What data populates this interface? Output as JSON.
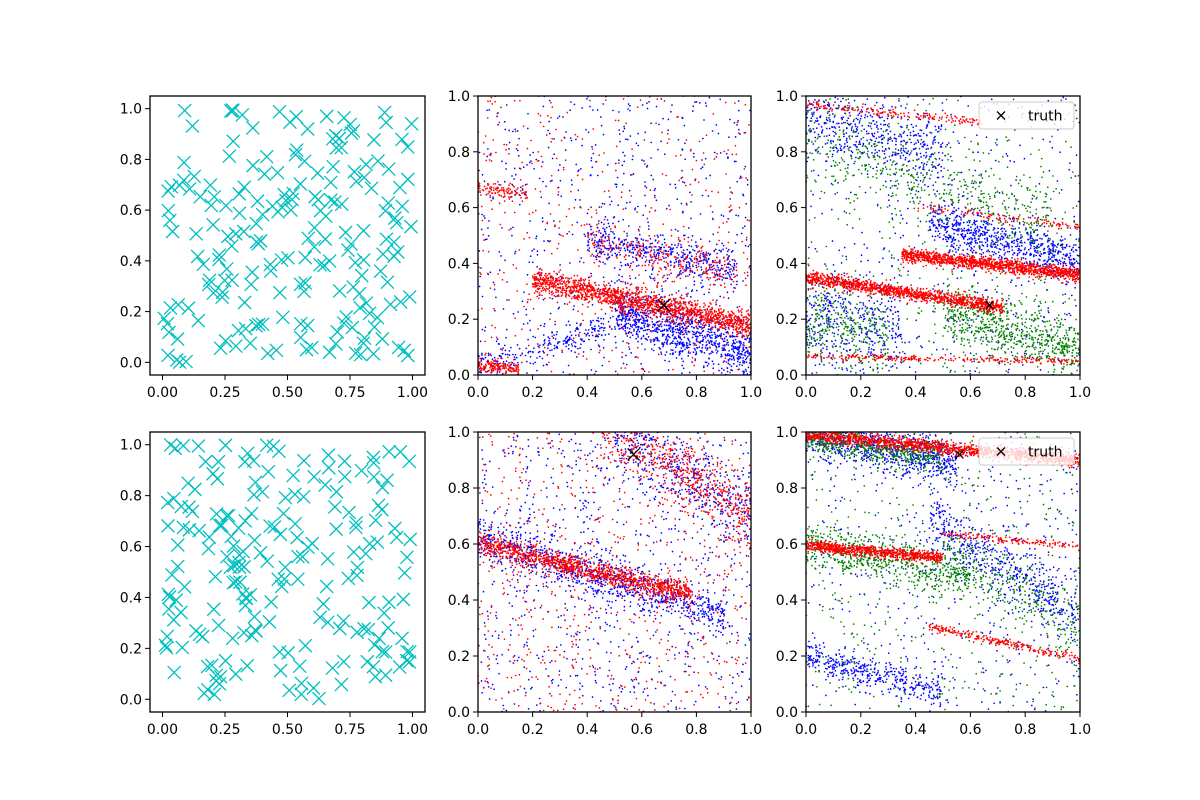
{
  "chart_data": [
    {
      "type": "scatter",
      "panel": "top-left",
      "xlim": [
        -0.05,
        1.05
      ],
      "ylim": [
        -0.05,
        1.05
      ],
      "xticks": [
        "0.00",
        "0.25",
        "0.50",
        "0.75",
        "1.00"
      ],
      "yticks": [
        "0.0",
        "0.2",
        "0.4",
        "0.6",
        "0.8",
        "1.0"
      ],
      "series": [
        {
          "marker": "x",
          "color": "#00bfbf",
          "count": 200,
          "distribution": "uniform [0,1]x[0,1]",
          "seed": 11
        }
      ],
      "legend": null
    },
    {
      "type": "scatter",
      "panel": "top-middle",
      "xlim": [
        0,
        1
      ],
      "ylim": [
        0,
        1
      ],
      "xticks": [
        "0.0",
        "0.2",
        "0.4",
        "0.6",
        "0.8",
        "1.0"
      ],
      "yticks": [
        "0.0",
        "0.2",
        "0.4",
        "0.6",
        "0.8",
        "1.0"
      ],
      "series": [
        {
          "color": "#0000ff",
          "marker": "dot",
          "seed": 21,
          "components": [
            {
              "kind": "uniform",
              "n": 700
            },
            {
              "kind": "band",
              "n": 900,
              "x": [
                0.5,
                1.0
              ],
              "y_at_x0": 0.38,
              "slope": -0.3,
              "width": 0.05
            },
            {
              "kind": "band",
              "n": 450,
              "x": [
                0.4,
                0.95
              ],
              "y_at_x0": 0.58,
              "slope": -0.22,
              "width": 0.035
            },
            {
              "kind": "band",
              "n": 250,
              "x": [
                0.0,
                0.6
              ],
              "y_at_x0": 0.03,
              "slope": 0.3,
              "width": 0.025
            }
          ]
        },
        {
          "color": "#ff0000",
          "marker": "dot",
          "seed": 22,
          "components": [
            {
              "kind": "uniform",
              "n": 450
            },
            {
              "kind": "band",
              "n": 1500,
              "x": [
                0.2,
                1.0
              ],
              "y_at_x0": 0.38,
              "slope": -0.2,
              "width": 0.022
            },
            {
              "kind": "band",
              "n": 250,
              "x": [
                0.4,
                0.95
              ],
              "y_at_x0": 0.57,
              "slope": -0.22,
              "width": 0.035
            },
            {
              "kind": "band",
              "n": 150,
              "x": [
                0.0,
                0.15
              ],
              "y_at_x0": 0.03,
              "slope": -0.05,
              "width": 0.012
            },
            {
              "kind": "band",
              "n": 100,
              "x": [
                0.0,
                0.18
              ],
              "y_at_x0": 0.67,
              "slope": -0.1,
              "width": 0.015
            }
          ]
        }
      ],
      "truth": {
        "x": 0.68,
        "y": 0.25,
        "marker": "X",
        "color": "#000000"
      },
      "legend": null
    },
    {
      "type": "scatter",
      "panel": "top-right",
      "xlim": [
        0,
        1
      ],
      "ylim": [
        0,
        1
      ],
      "xticks": [
        "0.0",
        "0.2",
        "0.4",
        "0.6",
        "0.8",
        "1.0"
      ],
      "yticks": [
        "0.0",
        "0.2",
        "0.4",
        "0.6",
        "0.8",
        "1.0"
      ],
      "series": [
        {
          "color": "#0000ff",
          "marker": "dot",
          "seed": 31,
          "components": [
            {
              "kind": "uniform",
              "n": 450
            },
            {
              "kind": "band",
              "n": 700,
              "x": [
                0.45,
                1.0
              ],
              "y_at_x0": 0.66,
              "slope": -0.25,
              "width": 0.04
            },
            {
              "kind": "band",
              "n": 450,
              "x": [
                0.0,
                0.5
              ],
              "y_at_x0": 0.93,
              "slope": -0.3,
              "width": 0.06
            },
            {
              "kind": "band",
              "n": 350,
              "x": [
                0.0,
                0.35
              ],
              "y_at_x0": 0.22,
              "slope": -0.2,
              "width": 0.09
            }
          ]
        },
        {
          "color": "#008000",
          "marker": "dot",
          "seed": 32,
          "components": [
            {
              "kind": "uniform",
              "n": 450
            },
            {
              "kind": "band",
              "n": 650,
              "x": [
                0.5,
                1.0
              ],
              "y_at_x0": 0.38,
              "slope": -0.3,
              "width": 0.05
            },
            {
              "kind": "band",
              "n": 450,
              "x": [
                0.0,
                0.9
              ],
              "y_at_x0": 0.85,
              "slope": -0.35,
              "width": 0.07
            },
            {
              "kind": "band",
              "n": 300,
              "x": [
                0.0,
                0.3
              ],
              "y_at_x0": 0.2,
              "slope": -0.2,
              "width": 0.08
            }
          ]
        },
        {
          "color": "#ff0000",
          "marker": "dot",
          "seed": 33,
          "components": [
            {
              "kind": "band",
              "n": 1200,
              "x": [
                0.0,
                0.72
              ],
              "y_at_x0": 0.35,
              "slope": -0.15,
              "width": 0.012
            },
            {
              "kind": "band",
              "n": 1300,
              "x": [
                0.35,
                1.0
              ],
              "y_at_x0": 0.47,
              "slope": -0.11,
              "width": 0.012
            },
            {
              "kind": "band",
              "n": 250,
              "x": [
                0.0,
                1.0
              ],
              "y_at_x0": 0.065,
              "slope": -0.015,
              "width": 0.006
            },
            {
              "kind": "band",
              "n": 180,
              "x": [
                0.0,
                0.65
              ],
              "y_at_x0": 0.97,
              "slope": -0.1,
              "width": 0.008
            },
            {
              "kind": "band",
              "n": 120,
              "x": [
                0.4,
                1.0
              ],
              "y_at_x0": 0.65,
              "slope": -0.12,
              "width": 0.008
            }
          ]
        }
      ],
      "truth": {
        "x": 0.67,
        "y": 0.25,
        "marker": "x",
        "color": "#000000"
      },
      "legend": {
        "label": "truth",
        "position": "upper right"
      }
    },
    {
      "type": "scatter",
      "panel": "bottom-left",
      "xlim": [
        -0.05,
        1.05
      ],
      "ylim": [
        -0.05,
        1.05
      ],
      "xticks": [
        "0.00",
        "0.25",
        "0.50",
        "0.75",
        "1.00"
      ],
      "yticks": [
        "0.0",
        "0.2",
        "0.4",
        "0.6",
        "0.8",
        "1.0"
      ],
      "series": [
        {
          "marker": "x",
          "color": "#00bfbf",
          "count": 200,
          "distribution": "uniform [0,1]x[0,1]",
          "seed": 41
        }
      ],
      "legend": null
    },
    {
      "type": "scatter",
      "panel": "bottom-middle",
      "xlim": [
        0,
        1
      ],
      "ylim": [
        0,
        1
      ],
      "xticks": [
        "0.0",
        "0.2",
        "0.4",
        "0.6",
        "0.8",
        "1.0"
      ],
      "yticks": [
        "0.0",
        "0.2",
        "0.4",
        "0.6",
        "0.8",
        "1.0"
      ],
      "series": [
        {
          "color": "#0000ff",
          "marker": "dot",
          "seed": 51,
          "components": [
            {
              "kind": "uniform",
              "n": 800
            },
            {
              "kind": "band",
              "n": 900,
              "x": [
                0.0,
                0.9
              ],
              "y_at_x0": 0.62,
              "slope": -0.3,
              "width": 0.04
            },
            {
              "kind": "band",
              "n": 450,
              "x": [
                0.5,
                1.0
              ],
              "y_at_x0": 1.3,
              "slope": -0.6,
              "width": 0.07
            }
          ]
        },
        {
          "color": "#ff0000",
          "marker": "dot",
          "seed": 52,
          "components": [
            {
              "kind": "uniform",
              "n": 700
            },
            {
              "kind": "band",
              "n": 1200,
              "x": [
                0.0,
                0.78
              ],
              "y_at_x0": 0.6,
              "slope": -0.23,
              "width": 0.02
            },
            {
              "kind": "band",
              "n": 600,
              "x": [
                0.45,
                1.0
              ],
              "y_at_x0": 1.3,
              "slope": -0.6,
              "width": 0.06
            }
          ]
        }
      ],
      "truth": {
        "x": 0.57,
        "y": 0.92,
        "marker": "X",
        "color": "#000000"
      },
      "legend": null
    },
    {
      "type": "scatter",
      "panel": "bottom-right",
      "xlim": [
        0,
        1
      ],
      "ylim": [
        0,
        1
      ],
      "xticks": [
        "0.0",
        "0.2",
        "0.4",
        "0.6",
        "0.8",
        "1.0"
      ],
      "yticks": [
        "0.0",
        "0.2",
        "0.4",
        "0.6",
        "0.8",
        "1.0"
      ],
      "series": [
        {
          "color": "#0000ff",
          "marker": "dot",
          "seed": 61,
          "components": [
            {
              "kind": "uniform",
              "n": 450
            },
            {
              "kind": "band",
              "n": 800,
              "x": [
                0.0,
                0.55
              ],
              "y_at_x0": 1.0,
              "slope": -0.2,
              "width": 0.04
            },
            {
              "kind": "band",
              "n": 500,
              "x": [
                0.45,
                1.0
              ],
              "y_at_x0": 0.95,
              "slope": -0.6,
              "width": 0.06
            },
            {
              "kind": "band",
              "n": 400,
              "x": [
                0.0,
                0.5
              ],
              "y_at_x0": 0.2,
              "slope": -0.25,
              "width": 0.03
            }
          ]
        },
        {
          "color": "#008000",
          "marker": "dot",
          "seed": 62,
          "components": [
            {
              "kind": "uniform",
              "n": 450
            },
            {
              "kind": "band",
              "n": 600,
              "x": [
                0.0,
                0.6
              ],
              "y_at_x0": 0.6,
              "slope": -0.2,
              "width": 0.04
            },
            {
              "kind": "band",
              "n": 500,
              "x": [
                0.0,
                0.5
              ],
              "y_at_x0": 0.98,
              "slope": -0.15,
              "width": 0.025
            },
            {
              "kind": "band",
              "n": 300,
              "x": [
                0.5,
                1.0
              ],
              "y_at_x0": 0.85,
              "slope": -0.55,
              "width": 0.06
            }
          ]
        },
        {
          "color": "#ff0000",
          "marker": "dot",
          "seed": 63,
          "components": [
            {
              "kind": "band",
              "n": 1400,
              "x": [
                0.0,
                1.0
              ],
              "y_at_x0": 0.99,
              "slope": -0.09,
              "width": 0.012
            },
            {
              "kind": "band",
              "n": 800,
              "x": [
                0.0,
                0.5
              ],
              "y_at_x0": 0.595,
              "slope": -0.09,
              "width": 0.01
            },
            {
              "kind": "band",
              "n": 150,
              "x": [
                0.5,
                1.0
              ],
              "y_at_x0": 0.68,
              "slope": -0.09,
              "width": 0.006
            },
            {
              "kind": "band",
              "n": 250,
              "x": [
                0.45,
                1.0
              ],
              "y_at_x0": 0.4,
              "slope": -0.21,
              "width": 0.008
            }
          ]
        }
      ],
      "truth": {
        "x": 0.56,
        "y": 0.92,
        "marker": "x",
        "color": "#000000"
      },
      "legend": {
        "label": "truth",
        "position": "upper right"
      }
    }
  ]
}
